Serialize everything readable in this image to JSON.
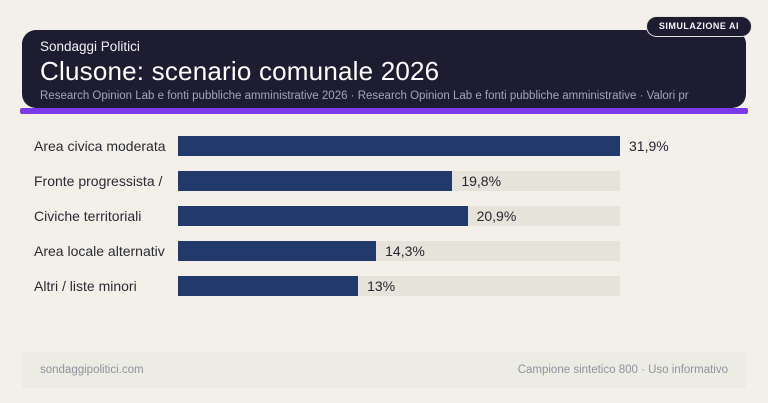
{
  "badge": {
    "label": "SIMULAZIONE AI"
  },
  "header": {
    "kicker": "Sondaggi Politici",
    "title": "Clusone: scenario comunale 2026",
    "subtitle": "Research Opinion Lab e fonti pubbliche amministrative 2026 · Research Opinion Lab e fonti pubbliche amministrative · Valori pr"
  },
  "chart_data": {
    "type": "bar",
    "orientation": "horizontal",
    "title": "Clusone: scenario comunale 2026",
    "categories": [
      "Area civica moderata",
      "Fronte progressista /",
      "Civiche territoriali",
      "Area locale alternativ",
      "Altri / liste minori"
    ],
    "values": [
      31.9,
      19.8,
      20.9,
      14.3,
      13
    ],
    "value_labels": [
      "31,9%",
      "19,8%",
      "20,9%",
      "14,3%",
      "13%"
    ],
    "xlim": [
      0,
      31.9
    ],
    "grid": false,
    "legend": false,
    "bar_color": "#21396b",
    "track_color": "#e6e3da"
  },
  "footer": {
    "left": "sondaggipolitici.com",
    "right": "Campione sintetico 800 · Uso informativo"
  },
  "colors": {
    "page_background": "#f3f0ea",
    "header_background": "#1e1c31",
    "accent": "#7c3aed",
    "bar": "#21396b",
    "track": "#e6e3da",
    "footer_band": "#ecebe4",
    "label_text": "#2a2a33",
    "muted_text": "#8f929c",
    "subtitle_text": "#a3a5b8"
  }
}
